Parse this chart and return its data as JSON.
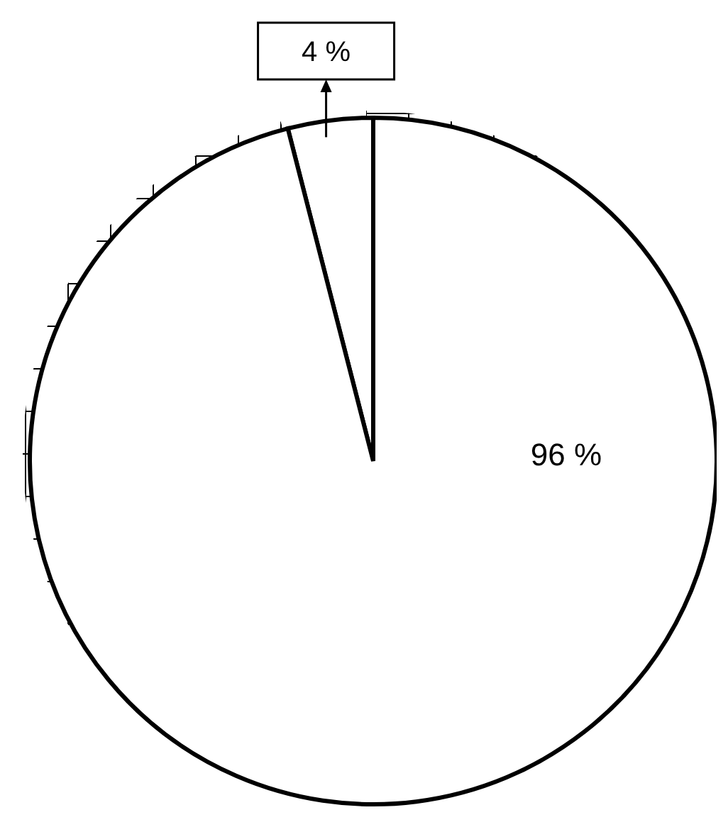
{
  "chart_data": {
    "type": "pie",
    "categories": [
      null,
      null
    ],
    "values": [
      4,
      96
    ],
    "colors": [
      "#ffffff",
      "#ffffff"
    ],
    "value_labels": [
      "4 %",
      "96 %"
    ],
    "legend": false
  }
}
